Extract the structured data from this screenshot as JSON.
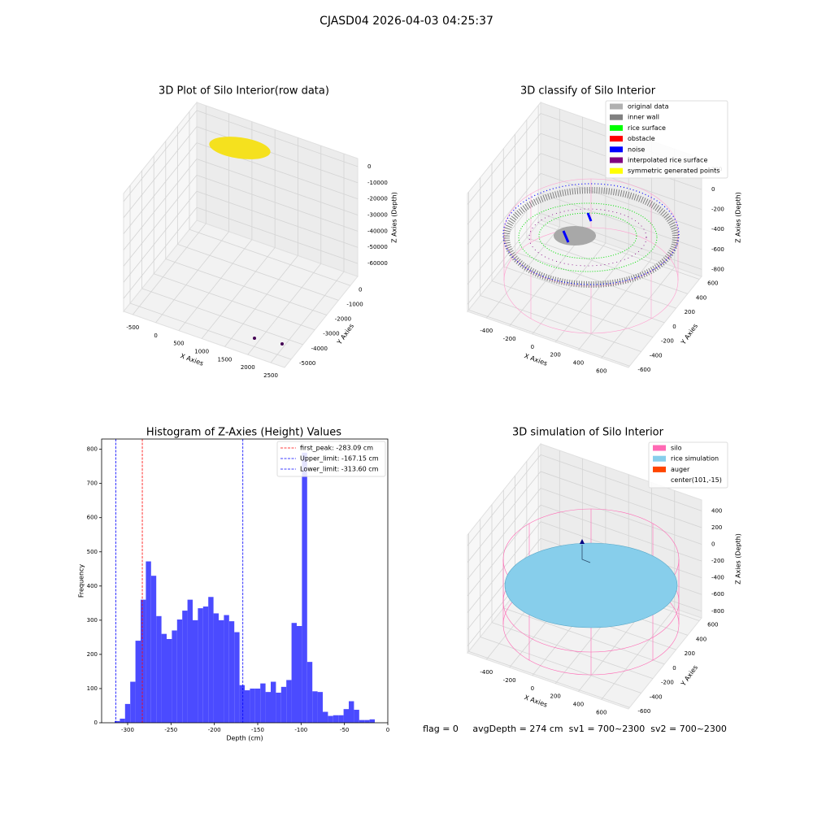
{
  "suptitle": "CJASD04 2026-04-03 04:25:37",
  "footer": "flag = 0     avgDepth = 274 cm  sv1 = 700~2300  sv2 = 700~2300",
  "chart_data": [
    {
      "type": "scatter3d",
      "title": "3D Plot of Silo Interior(row data)",
      "xlabel": "X Axies",
      "ylabel": "Y Axies",
      "zlabel": "Z Axies (Depth)",
      "xlim": [
        -700,
        2800
      ],
      "xticks": [
        -500,
        0,
        500,
        1000,
        1500,
        2000,
        2500
      ],
      "ylim": [
        -5550,
        620
      ],
      "yticks": [
        0,
        -1000,
        -2000,
        -3000,
        -4000,
        -5000
      ],
      "zlim": [
        -68000,
        5000
      ],
      "zticks": [
        0,
        -10000,
        -20000,
        -30000,
        -40000,
        -50000,
        -60000
      ]
    },
    {
      "type": "scatter3d",
      "title": "3D classify of Silo Interior",
      "xlabel": "X Axies",
      "ylabel": "Y Axies",
      "zlabel": "Z Axies (Depth)",
      "xlim": [
        -565,
        835
      ],
      "xticks": [
        -400,
        -200,
        0,
        200,
        400,
        600
      ],
      "ylim": [
        -620,
        640
      ],
      "yticks": [
        -600,
        -400,
        -200,
        0,
        200,
        400,
        600
      ],
      "zlim": [
        -870,
        310
      ],
      "zticks": [
        200,
        0,
        -200,
        -400,
        -600,
        -800
      ],
      "legend": [
        {
          "name": "original data",
          "color": "#b0b0b0"
        },
        {
          "name": "inner wall",
          "color": "#808080"
        },
        {
          "name": "rice surface",
          "color": "#00ff00"
        },
        {
          "name": "obstacle",
          "color": "#ff0000"
        },
        {
          "name": "noise",
          "color": "#0000ff"
        },
        {
          "name": "interpolated rice surface",
          "color": "#800080"
        },
        {
          "name": "symmetric generated points",
          "color": "#ffff00"
        }
      ]
    },
    {
      "type": "histogram",
      "title": "Histogram of Z-Axies (Height) Values",
      "xlabel": "Depth (cm)",
      "ylabel": "Frequency",
      "color": "#4b4bff",
      "bins": [
        -315,
        -309,
        -303,
        -297,
        -291,
        -285,
        -279,
        -273,
        -267,
        -261,
        -255,
        -249,
        -243,
        -237,
        -231,
        -225,
        -219,
        -213,
        -207,
        -201,
        -195,
        -189,
        -183,
        -177,
        -171,
        -165,
        -159,
        -153,
        -147,
        -141,
        -135,
        -129,
        -123,
        -117,
        -111,
        -105,
        -99,
        -93,
        -87,
        -81,
        -75,
        -69,
        -63,
        -57,
        -51,
        -45,
        -39,
        -33,
        -27,
        -21,
        -15
      ],
      "values": [
        5,
        12,
        55,
        120,
        240,
        360,
        472,
        430,
        312,
        260,
        245,
        270,
        302,
        328,
        360,
        300,
        335,
        340,
        368,
        320,
        300,
        315,
        297,
        265,
        110,
        95,
        100,
        100,
        115,
        90,
        120,
        88,
        105,
        125,
        292,
        283,
        790,
        178,
        92,
        90,
        32,
        20,
        22,
        22,
        40,
        63,
        38,
        8,
        8,
        10
      ],
      "xlim": [
        -330,
        0
      ],
      "xticks": [
        -300,
        -250,
        -200,
        -150,
        -100,
        -50,
        0
      ],
      "ylim": [
        0,
        830
      ],
      "yticks": [
        0,
        100,
        200,
        300,
        400,
        500,
        600,
        700,
        800
      ],
      "vlines": [
        {
          "label": "first_peak: -283.09 cm",
          "value": -283.09,
          "color": "#ff0000"
        },
        {
          "label": "Upper_limit: -167.15 cm",
          "value": -167.15,
          "color": "#0000ff"
        },
        {
          "label": "Lower_limit: -313.60 cm",
          "value": -313.6,
          "color": "#0000ff"
        }
      ]
    },
    {
      "type": "scatter3d",
      "title": "3D simulation of Silo Interior",
      "xlabel": "X Axies",
      "ylabel": "Y Axies",
      "zlabel": "Z Axies (Depth)",
      "xlim": [
        -565,
        835
      ],
      "xticks": [
        -400,
        -200,
        0,
        200,
        400,
        600
      ],
      "ylim": [
        -620,
        640
      ],
      "yticks": [
        -600,
        -400,
        -200,
        0,
        200,
        400,
        600
      ],
      "zlim": [
        -880,
        530
      ],
      "zticks": [
        400,
        200,
        0,
        -200,
        -400,
        -600,
        -800
      ],
      "legend": [
        {
          "name": "silo",
          "color": "#ff69b4"
        },
        {
          "name": "rice simulation",
          "color": "#87ceeb"
        },
        {
          "name": "auger",
          "color": "#ff4500"
        },
        {
          "name": "center(101,-15)"
        }
      ]
    }
  ]
}
